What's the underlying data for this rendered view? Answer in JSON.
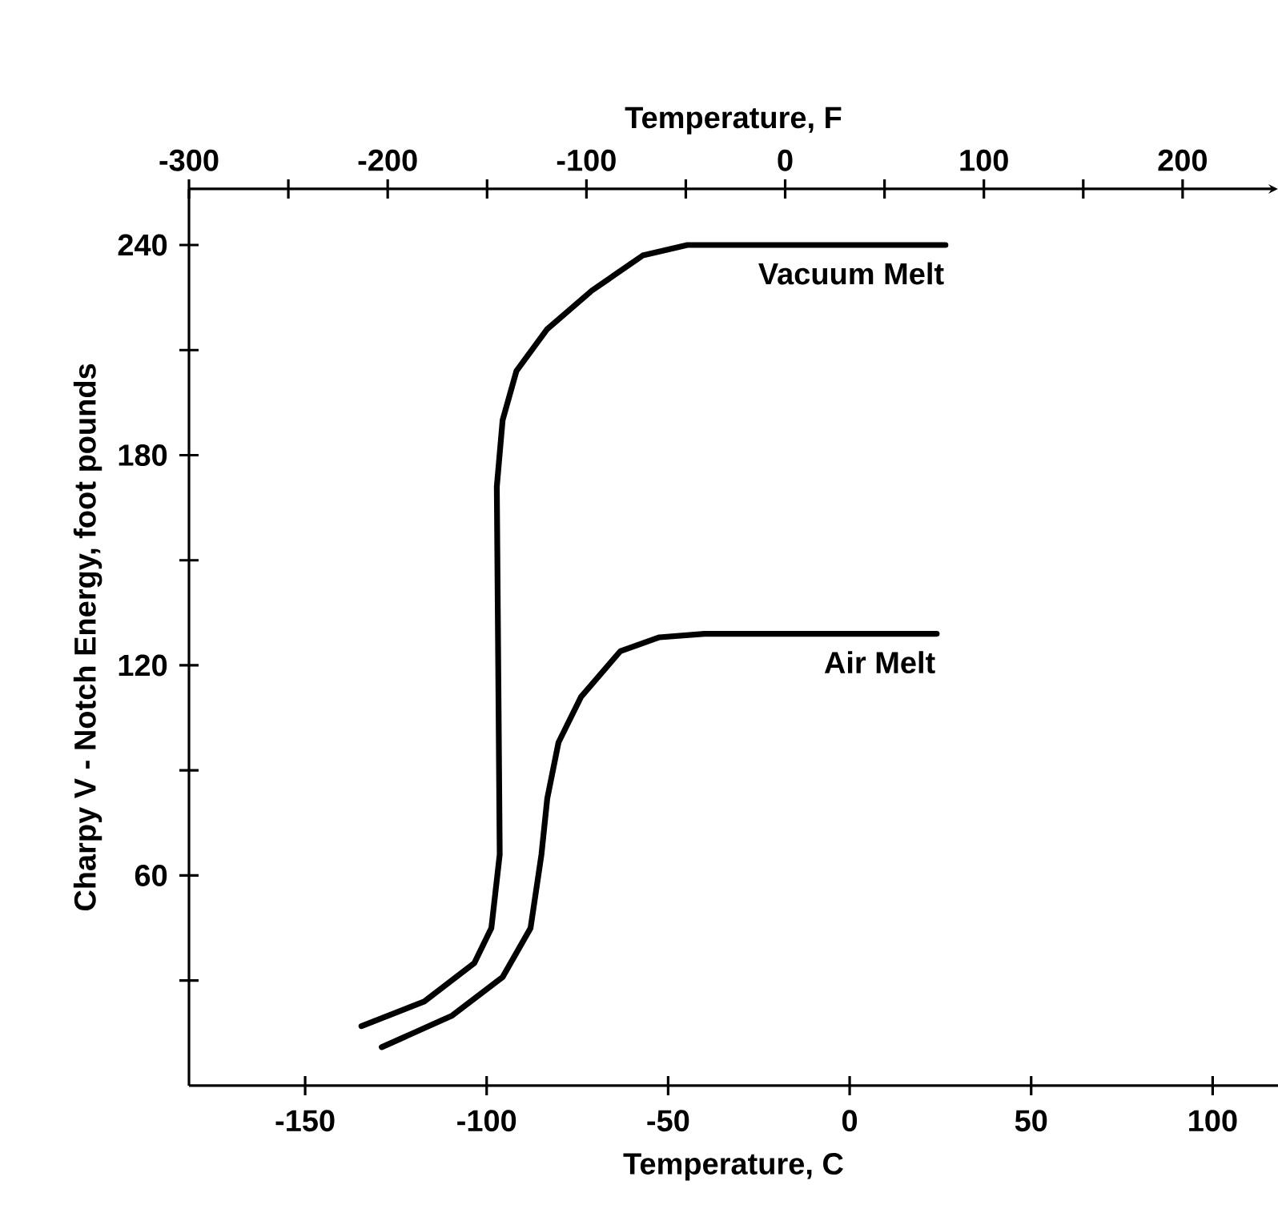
{
  "chart_data": {
    "type": "line",
    "xlabel": "Temperature, C",
    "x2label": "Temperature, F",
    "ylabel": "Charpy V - Notch Energy, foot pounds",
    "xlim": [
      -182,
      118
    ],
    "xticks": [
      -150,
      -100,
      -50,
      0,
      50,
      100
    ],
    "x2lim": [
      -300,
      248
    ],
    "x2ticks": [
      -300,
      {
        "value": -250,
        "label": null
      },
      -200,
      {
        "value": -150,
        "label": null
      },
      -100,
      {
        "value": -50,
        "label": null
      },
      0,
      {
        "value": 50,
        "label": null
      },
      100,
      {
        "value": 150,
        "label": null
      },
      200
    ],
    "ylim": [
      0,
      256
    ],
    "yticks": [
      {
        "value": 30,
        "label": null
      },
      60,
      {
        "value": 90,
        "label": null
      },
      120,
      {
        "value": 150,
        "label": null
      },
      180,
      {
        "value": 210,
        "label": null
      },
      240
    ],
    "marker": "none",
    "line_style": "solid",
    "series": [
      {
        "name": "Vacuum Melt",
        "color": "#000000",
        "x": [
          -134.5,
          -117.2,
          -103.4,
          -98.7,
          -96.4,
          -96.7,
          -97.2,
          -95.6,
          -91.8,
          -83.3,
          -71,
          -57,
          -44.7,
          -30,
          26.4
        ],
        "values": [
          17,
          24,
          35,
          45,
          66,
          106,
          171,
          190,
          204,
          216,
          227,
          237,
          240,
          240,
          240
        ]
      },
      {
        "name": "Air Melt",
        "color": "#000000",
        "x": [
          -128.9,
          -109.5,
          -95.6,
          -87.9,
          -84.9,
          -83.3,
          -80.2,
          -74,
          -63.2,
          -52.4,
          -40,
          24
        ],
        "values": [
          11,
          20,
          31,
          45,
          66,
          82,
          98,
          111,
          124,
          128,
          129,
          129
        ]
      }
    ]
  }
}
